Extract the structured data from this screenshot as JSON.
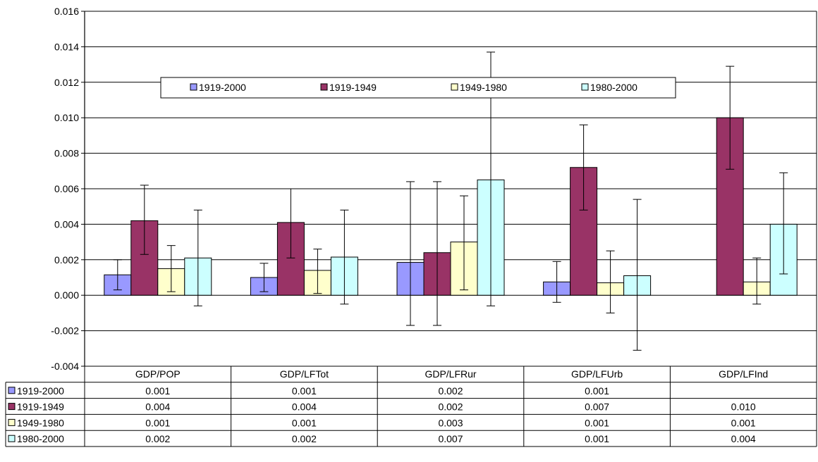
{
  "chart_data": {
    "type": "bar",
    "categories": [
      "GDP/POP",
      "GDP/LFTot",
      "GDP/LFRur",
      "GDP/LFUrb",
      "GDP/LFInd"
    ],
    "ylim": [
      -0.004,
      0.016
    ],
    "y_ticks": [
      "0.016",
      "0.014",
      "0.012",
      "0.010",
      "0.008",
      "0.006",
      "0.004",
      "0.002",
      "0.000",
      "-0.002",
      "-0.004"
    ],
    "y_tick_values": [
      0.016,
      0.014,
      0.012,
      0.01,
      0.008,
      0.006,
      0.004,
      0.002,
      0.0,
      -0.002,
      -0.004
    ],
    "grid": true,
    "legend_position": "top-center",
    "series": [
      {
        "name": "1919-2000",
        "color": "#9999ff",
        "values": [
          0.00115,
          0.001,
          0.00185,
          0.00075,
          null
        ],
        "err_low": [
          0.0003,
          0.0002,
          -0.0017,
          -0.0004,
          null
        ],
        "err_high": [
          0.002,
          0.0018,
          0.0064,
          0.0019,
          null
        ],
        "table": [
          "0.001",
          "0.001",
          "0.002",
          "0.001",
          ""
        ]
      },
      {
        "name": "1919-1949",
        "color": "#993366",
        "values": [
          0.0042,
          0.0041,
          0.0024,
          0.0072,
          0.01
        ],
        "err_low": [
          0.0023,
          0.0021,
          -0.0017,
          0.0048,
          0.0071
        ],
        "err_high": [
          0.0062,
          0.006,
          0.0064,
          0.0096,
          0.0129
        ],
        "table": [
          "0.004",
          "0.004",
          "0.002",
          "0.007",
          "0.010"
        ]
      },
      {
        "name": "1949-1980",
        "color": "#ffffcc",
        "values": [
          0.0015,
          0.0014,
          0.003,
          0.0007,
          0.00075
        ],
        "err_low": [
          0.0002,
          0.0001,
          0.0003,
          -0.001,
          -0.0005
        ],
        "err_high": [
          0.0028,
          0.0026,
          0.0056,
          0.0025,
          0.0021
        ],
        "table": [
          "0.001",
          "0.001",
          "0.003",
          "0.001",
          "0.001"
        ]
      },
      {
        "name": "1980-2000",
        "color": "#ccffff",
        "values": [
          0.0021,
          0.00215,
          0.0065,
          0.0011,
          0.004
        ],
        "err_low": [
          -0.0006,
          -0.0005,
          -0.0006,
          -0.0031,
          0.0012
        ],
        "err_high": [
          0.0048,
          0.0048,
          0.0137,
          0.0054,
          0.0069
        ],
        "table": [
          "0.002",
          "0.002",
          "0.007",
          "0.001",
          "0.004"
        ]
      }
    ]
  }
}
